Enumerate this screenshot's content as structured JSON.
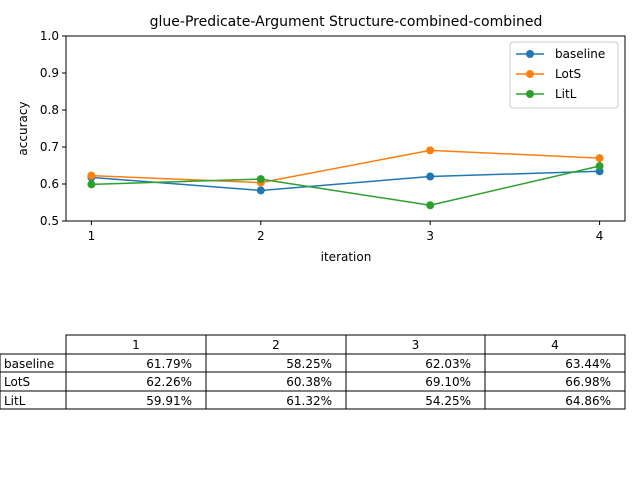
{
  "chart_data": {
    "type": "line",
    "title": "glue-Predicate-Argument Structure-combined-combined",
    "xlabel": "iteration",
    "ylabel": "accuracy",
    "x": [
      1,
      2,
      3,
      4
    ],
    "xticks": [
      "1",
      "2",
      "3",
      "4"
    ],
    "ylim": [
      0.5,
      1.0
    ],
    "yticks": [
      "0.5",
      "0.6",
      "0.7",
      "0.8",
      "0.9",
      "1.0"
    ],
    "grid": false,
    "legend_position": "top-right",
    "series": [
      {
        "name": "baseline",
        "color": "#1f77b4",
        "values": [
          0.6179,
          0.5825,
          0.6203,
          0.6344
        ]
      },
      {
        "name": "LotS",
        "color": "#ff7f0e",
        "values": [
          0.6226,
          0.6038,
          0.691,
          0.6698
        ]
      },
      {
        "name": "LitL",
        "color": "#2ca02c",
        "values": [
          0.5991,
          0.6132,
          0.5425,
          0.6486
        ]
      }
    ]
  },
  "table": {
    "columns": [
      "1",
      "2",
      "3",
      "4"
    ],
    "rows": [
      {
        "label": "baseline",
        "cells": [
          "61.79%",
          "58.25%",
          "62.03%",
          "63.44%"
        ]
      },
      {
        "label": "LotS",
        "cells": [
          "62.26%",
          "60.38%",
          "69.10%",
          "66.98%"
        ]
      },
      {
        "label": "LitL",
        "cells": [
          "59.91%",
          "61.32%",
          "54.25%",
          "64.86%"
        ]
      }
    ]
  }
}
